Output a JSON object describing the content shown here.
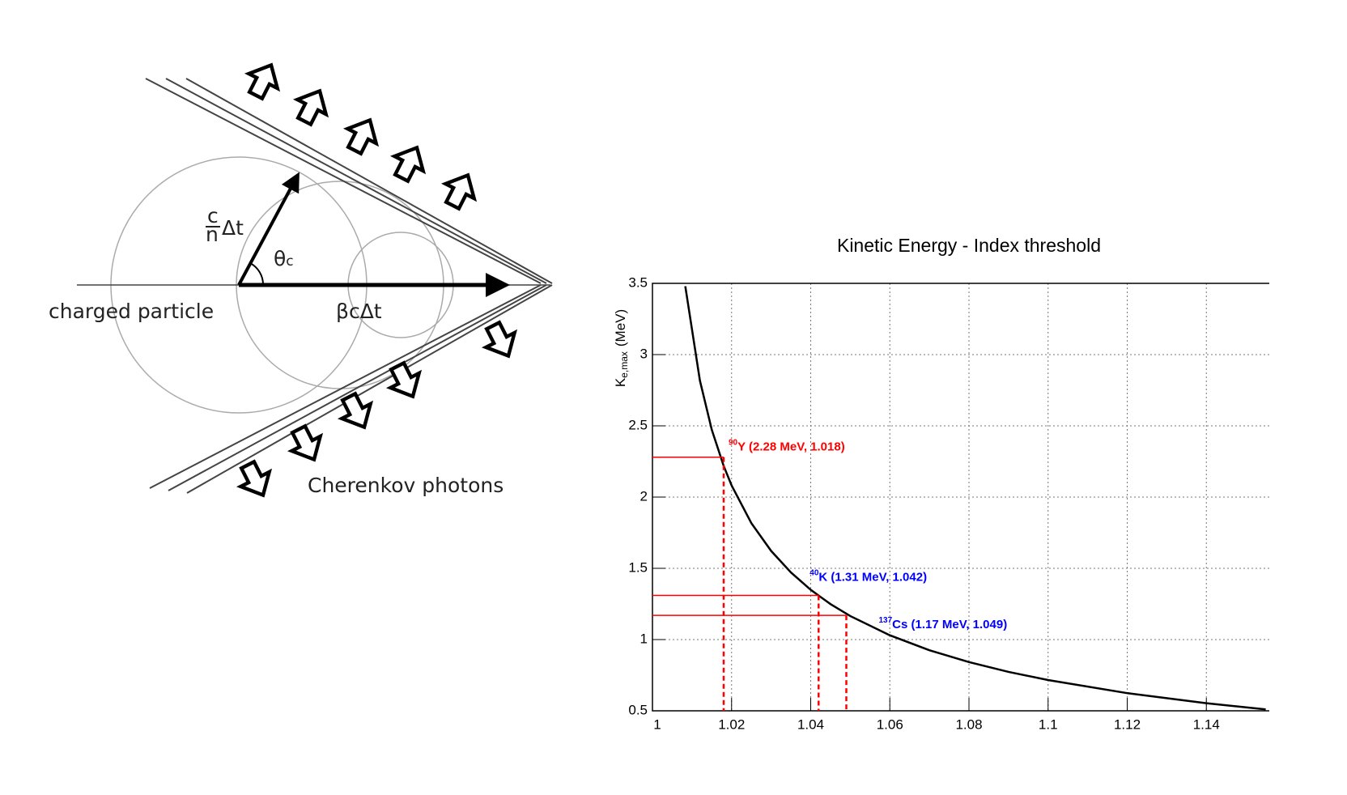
{
  "diagram": {
    "labels": {
      "speed_num": "c",
      "speed_den": "n",
      "speed_dt": "Δt",
      "angle": "θ",
      "angle_sub": "c",
      "particle": "charged particle",
      "distance": "βcΔt",
      "photons": "Cherenkov photons"
    }
  },
  "chart_data": {
    "type": "line",
    "title": "Kinetic Energy - Index threshold",
    "y_label": {
      "main": "K",
      "sub": "e,max",
      "unit": "(MeV)"
    },
    "x": [
      1.0083,
      1.012,
      1.015,
      1.018,
      1.02,
      1.025,
      1.03,
      1.035,
      1.04,
      1.045,
      1.05,
      1.06,
      1.07,
      1.08,
      1.09,
      1.1,
      1.12,
      1.14,
      1.155
    ],
    "values": [
      3.48,
      2.817,
      2.472,
      2.219,
      2.082,
      1.817,
      1.622,
      1.471,
      1.349,
      1.249,
      1.165,
      1.03,
      0.925,
      0.842,
      0.773,
      0.716,
      0.624,
      0.553,
      0.51
    ],
    "color": "#000000",
    "xlim": [
      1,
      1.16
    ],
    "xticks": [
      1,
      1.02,
      1.04,
      1.06,
      1.08,
      1.1,
      1.12,
      1.14
    ],
    "ylim": [
      0.5,
      3.5
    ],
    "yticks": [
      0.5,
      1,
      1.5,
      2,
      2.5,
      3,
      3.5
    ],
    "grid": true,
    "annotations": [
      {
        "sup": "90",
        "text": "Y (2.28 MeV, 1.018)",
        "x": 1.018,
        "y": 2.28,
        "color": "#ff0000",
        "line_color": "#ff0000"
      },
      {
        "sup": "40",
        "text": "K (1.31 MeV, 1.042)",
        "x": 1.042,
        "y": 1.31,
        "color": "#0000ff",
        "line_color": "#ff0000"
      },
      {
        "sup": "137",
        "text": "Cs (1.17 MeV, 1.049)",
        "x": 1.049,
        "y": 1.17,
        "color": "#0000ff",
        "line_color": "#ff0000"
      }
    ]
  }
}
